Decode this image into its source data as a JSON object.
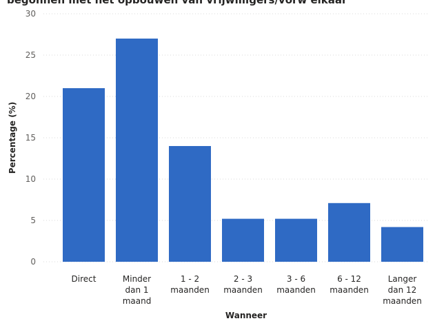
{
  "chart_data": {
    "type": "bar",
    "title": "begonnen met het opbouwen van vrijwilligers/vorw elkaar",
    "xlabel": "Wanneer",
    "ylabel": "Percentage (%)",
    "ylim": [
      0,
      30
    ],
    "yticks": [
      0,
      5,
      10,
      15,
      20,
      25,
      30
    ],
    "grid": true,
    "legend": "none",
    "categories": [
      [
        "Direct"
      ],
      [
        "Minder",
        "dan 1",
        "maand"
      ],
      [
        "1 - 2",
        "maanden"
      ],
      [
        "2 - 3",
        "maanden"
      ],
      [
        "3 - 6",
        "maanden"
      ],
      [
        "6 - 12",
        "maanden"
      ],
      [
        "Langer",
        "dan 12",
        "maanden"
      ]
    ],
    "values": [
      21,
      27,
      14,
      5.2,
      5.2,
      7.1,
      4.2
    ],
    "bar_color": "#2f6ac4"
  }
}
